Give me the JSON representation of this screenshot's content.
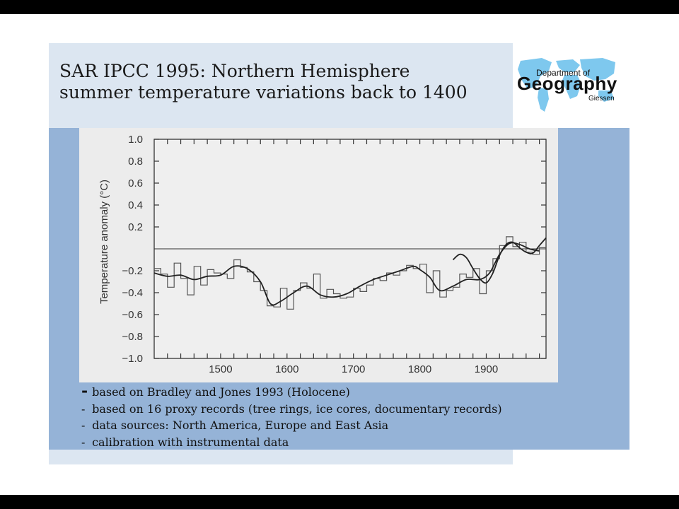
{
  "slide": {
    "title_lines": [
      "SAR IPCC 1995: Northern Hemisphere",
      "summer temperature variations back to 1400"
    ],
    "bullets": [
      "based on Bradley and Jones 1993 (Holocene)",
      "based on 16 proxy records (tree rings, ice cores, documentary records)",
      "data sources: North America, Europe and East Asia",
      "calibration with instrumental data"
    ],
    "bullet_marker": "-"
  },
  "logo": {
    "line1": "Department of",
    "line2": "Geography",
    "line3": "Giessen",
    "icon": "world-map-icon"
  },
  "colors": {
    "panel_light": "#dce6f1",
    "panel_blue": "#95b3d7",
    "chart_background": "#ececec",
    "ink": "#333333"
  },
  "chart_data": {
    "type": "line",
    "title": "",
    "xlabel": "",
    "ylabel": "Temperature anomaly (°C)",
    "xlim": [
      1400,
      1990
    ],
    "ylim": [
      -1.0,
      1.0
    ],
    "y_ticks": [
      1.0,
      0.8,
      0.6,
      0.4,
      0.2,
      -0.2,
      -0.4,
      -0.6,
      -0.8,
      -1.0
    ],
    "y_tick_labels": [
      "1.0",
      "0.8",
      "0.6",
      "0.4",
      "0.2",
      "−0.2",
      "−0.4",
      "−0.6",
      "−0.8",
      "−1.0"
    ],
    "x_ticks": [
      1500,
      1600,
      1700,
      1800,
      1900
    ],
    "x_tick_labels": [
      "1500",
      "1600",
      "1700",
      "1800",
      "1900"
    ],
    "zero_line": 0,
    "grid": false,
    "series": [
      {
        "style": "step",
        "x": [
          1400,
          1410,
          1420,
          1430,
          1440,
          1450,
          1460,
          1470,
          1480,
          1490,
          1500,
          1510,
          1520,
          1530,
          1540,
          1550,
          1560,
          1570,
          1580,
          1590,
          1600,
          1610,
          1620,
          1630,
          1640,
          1650,
          1660,
          1670,
          1680,
          1690,
          1700,
          1710,
          1720,
          1730,
          1740,
          1750,
          1760,
          1770,
          1780,
          1790,
          1800,
          1810,
          1820,
          1830,
          1840,
          1850,
          1860,
          1870,
          1880,
          1890,
          1900,
          1910,
          1920,
          1930,
          1940,
          1950,
          1960,
          1970,
          1980
        ],
        "values": [
          -0.18,
          -0.23,
          -0.35,
          -0.13,
          -0.27,
          -0.42,
          -0.16,
          -0.33,
          -0.19,
          -0.22,
          -0.23,
          -0.27,
          -0.1,
          -0.17,
          -0.21,
          -0.3,
          -0.38,
          -0.52,
          -0.53,
          -0.36,
          -0.55,
          -0.38,
          -0.31,
          -0.36,
          -0.23,
          -0.45,
          -0.37,
          -0.41,
          -0.45,
          -0.44,
          -0.36,
          -0.39,
          -0.33,
          -0.27,
          -0.29,
          -0.22,
          -0.24,
          -0.2,
          -0.15,
          -0.18,
          -0.14,
          -0.4,
          -0.2,
          -0.44,
          -0.38,
          -0.35,
          -0.23,
          -0.26,
          -0.18,
          -0.41,
          -0.2,
          -0.09,
          0.03,
          0.11,
          0.02,
          0.06,
          -0.03,
          -0.05,
          0.01
        ]
      },
      {
        "style": "smooth",
        "x": [
          1400,
          1420,
          1440,
          1460,
          1480,
          1500,
          1520,
          1540,
          1560,
          1575,
          1590,
          1610,
          1630,
          1650,
          1670,
          1690,
          1710,
          1730,
          1750,
          1770,
          1790,
          1800,
          1815,
          1830,
          1850,
          1870,
          1890,
          1905,
          1920,
          1935,
          1950,
          1965,
          1980
        ],
        "values": [
          -0.22,
          -0.25,
          -0.24,
          -0.28,
          -0.25,
          -0.24,
          -0.16,
          -0.18,
          -0.3,
          -0.5,
          -0.48,
          -0.4,
          -0.34,
          -0.42,
          -0.44,
          -0.41,
          -0.34,
          -0.28,
          -0.24,
          -0.2,
          -0.16,
          -0.19,
          -0.26,
          -0.38,
          -0.34,
          -0.28,
          -0.28,
          -0.22,
          -0.05,
          0.05,
          0.04,
          0.0,
          -0.02
        ]
      },
      {
        "style": "smooth",
        "x": [
          1850,
          1860,
          1870,
          1880,
          1890,
          1900,
          1910,
          1920,
          1930,
          1940,
          1950,
          1960,
          1970,
          1980,
          1990
        ],
        "values": [
          -0.1,
          -0.05,
          -0.08,
          -0.18,
          -0.27,
          -0.31,
          -0.22,
          -0.06,
          0.04,
          0.06,
          0.01,
          -0.03,
          -0.04,
          0.03,
          0.1
        ]
      }
    ]
  }
}
